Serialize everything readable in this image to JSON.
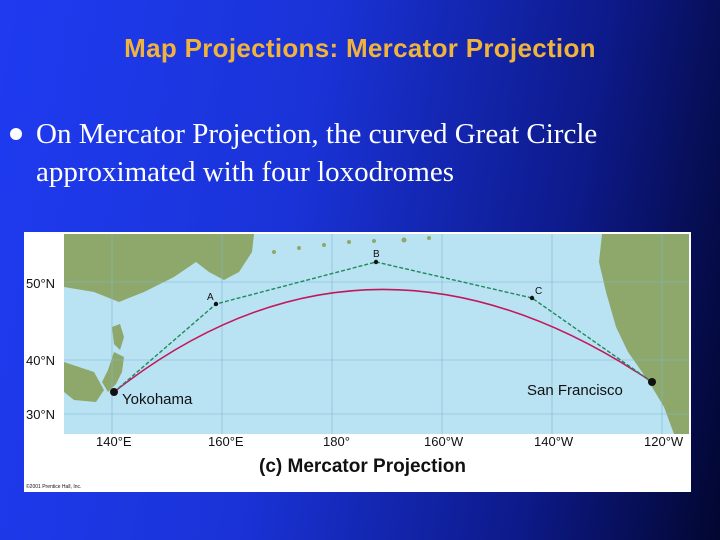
{
  "slide": {
    "title": "Map Projections: Mercator Projection",
    "bullet": "On Mercator Projection, the curved Great Circle approximated with four loxodromes"
  },
  "map": {
    "caption": "(c) Mercator Projection",
    "copyright": "©2001 Prentice Hall, Inc.",
    "lat_labels": [
      "50°N",
      "40°N",
      "30°N"
    ],
    "lon_labels": [
      "140°E",
      "160°E",
      "180°",
      "160°W",
      "140°W",
      "120°W"
    ],
    "cities": {
      "origin": "Yokohama",
      "destination": "San Francisco"
    },
    "waypoints": [
      "A",
      "B",
      "C"
    ],
    "colors": {
      "ocean": "#b9e3f3",
      "land": "#8da86a",
      "great_circle": "#c2185b",
      "loxodromes": "#1f8a5a"
    }
  }
}
